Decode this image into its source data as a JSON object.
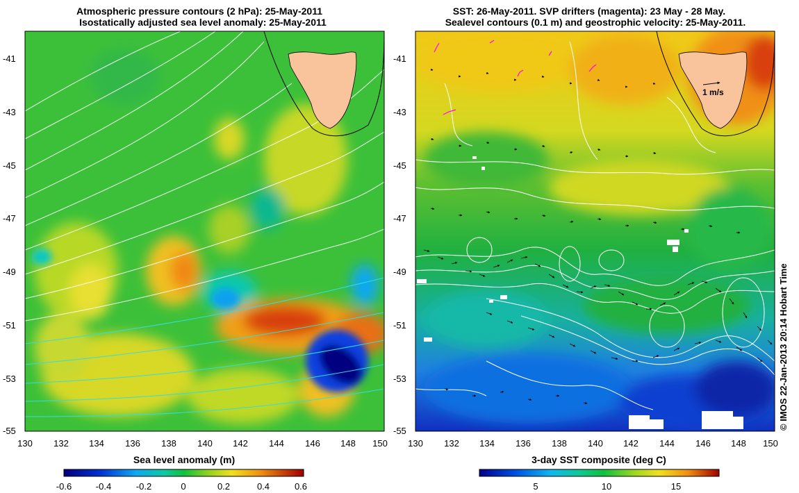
{
  "left_panel": {
    "title_line1": "Atmospheric pressure contours (2 hPa): 25-May-2011",
    "title_line2": "Isostatically adjusted sea level anomaly: 25-May-2011",
    "x_ticks": [
      "130",
      "132",
      "134",
      "136",
      "138",
      "140",
      "142",
      "144",
      "146",
      "148",
      "150"
    ],
    "y_ticks": [
      "-41",
      "-43",
      "-45",
      "-47",
      "-49",
      "-51",
      "-53",
      "-55"
    ],
    "colorbar_label": "Sea level anomaly (m)",
    "colorbar_ticks": [
      "-0.6",
      "-0.4",
      "-0.2",
      "0",
      "0.2",
      "0.4",
      "0.6"
    ]
  },
  "right_panel": {
    "title_line1": "SST: 26-May-2011. SVP drifters (magenta): 23 May - 28 May.",
    "title_line2": "Sealevel contours (0.1 m) and geostrophic velocity: 25-May-2011.",
    "x_ticks": [
      "130",
      "132",
      "134",
      "136",
      "138",
      "140",
      "142",
      "144",
      "146",
      "148",
      "150"
    ],
    "y_ticks": [
      "-41",
      "-43",
      "-45",
      "-47",
      "-49",
      "-51",
      "-53",
      "-55"
    ],
    "scale_label": "1 m/s",
    "colorbar_label": "3-day SST composite (deg C)",
    "colorbar_ticks": [
      "5",
      "10",
      "15"
    ]
  },
  "credit": "© IMOS 22-Jan-2013 20:14 Hobart Time",
  "colors": {
    "land": "#f9c49b",
    "contour": "#ffffff",
    "pressure_contour_cyan": "#33dddd",
    "drifter": "#ff00ff"
  },
  "maps": [
    {
      "panel": "left",
      "lon_range": [
        130,
        150
      ],
      "lat_range": [
        -55,
        -40
      ]
    },
    {
      "panel": "right",
      "lon_range": [
        130,
        150
      ],
      "lat_range": [
        -55,
        -40
      ]
    }
  ]
}
